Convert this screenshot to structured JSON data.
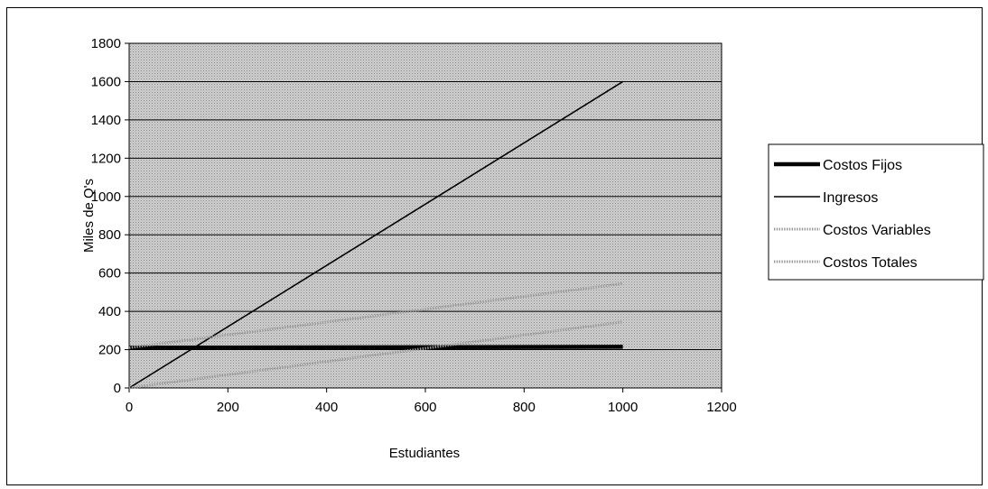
{
  "chart_data": {
    "type": "line",
    "title": "",
    "xlabel": "Estudiantes",
    "ylabel": "Miles de Q's",
    "xlim": [
      0,
      1200
    ],
    "ylim": [
      0,
      1800
    ],
    "x_ticks": [
      "0",
      "200",
      "400",
      "600",
      "800",
      "1000",
      "1200"
    ],
    "y_ticks": [
      "0",
      "200",
      "400",
      "600",
      "800",
      "1000",
      "1200",
      "1400",
      "1600",
      "1800"
    ],
    "grid": "horizontal",
    "legend_position": "right",
    "plot_background": "dotted gray",
    "series": [
      {
        "name": "Costos Fijos",
        "style": "thick",
        "color": "#000000",
        "x": [
          0,
          1000
        ],
        "y": [
          210,
          215
        ]
      },
      {
        "name": "Ingresos",
        "style": "thin",
        "color": "#000000",
        "x": [
          0,
          1000
        ],
        "y": [
          0,
          1600
        ]
      },
      {
        "name": "Costos Variables",
        "style": "dotted",
        "color": "#9a9a9a",
        "x": [
          0,
          1000
        ],
        "y": [
          0,
          345
        ]
      },
      {
        "name": "Costos Totales",
        "style": "dotted",
        "color": "#9a9a9a",
        "x": [
          0,
          1000
        ],
        "y": [
          210,
          545
        ]
      }
    ]
  }
}
